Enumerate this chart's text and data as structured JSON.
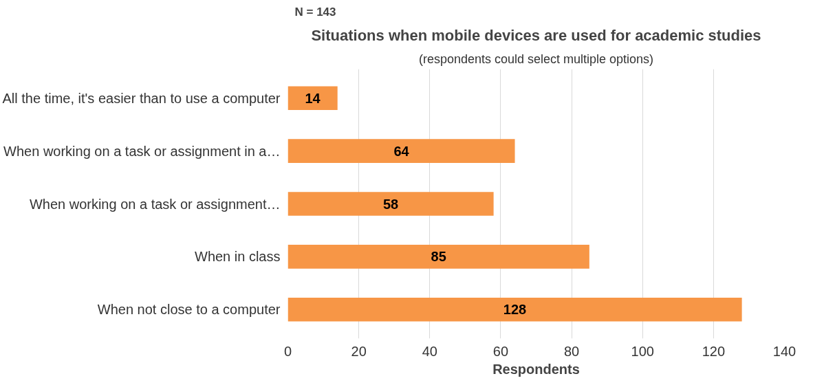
{
  "chart_data": {
    "type": "bar",
    "orientation": "horizontal",
    "title": "Situations when mobile devices are used for academic studies",
    "subtitle": "(respondents could select multiple options)",
    "xlabel": "Respondents",
    "categories": [
      "All the time, it's easier than to use a computer",
      "When working on a task or assignment in a…",
      "When working on a task or assignment…",
      "When in class",
      "When not close to a computer"
    ],
    "values": [
      14,
      64,
      58,
      85,
      128
    ],
    "color": "#f79646",
    "xlim": [
      0,
      140
    ],
    "xticks": [
      0,
      20,
      40,
      60,
      80,
      100,
      120,
      140
    ],
    "grid": "x",
    "data_labels": true,
    "annotations": [
      "N = 143"
    ]
  }
}
